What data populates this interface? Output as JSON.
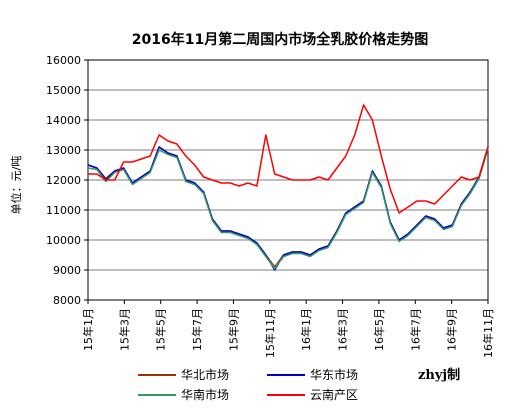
{
  "chart_data": {
    "type": "line",
    "title": "2016年11月第二周国内市场全乳胶价格走势图",
    "xlabel": "",
    "ylabel": "单位：元/吨",
    "ylim": [
      8000,
      16000
    ],
    "yticks": [
      "8000",
      "9000",
      "10000",
      "11000",
      "12000",
      "13000",
      "14000",
      "15000",
      "16000"
    ],
    "xticks": [
      "15年1月",
      "15年3月",
      "15年5月",
      "15年7月",
      "15年9月",
      "15年11月",
      "16年1月",
      "16年3月",
      "16年5月",
      "16年7月",
      "16年9月",
      "16年11月"
    ],
    "x_points": [
      "15-01",
      "15-01b",
      "15-02",
      "15-02b",
      "15-03",
      "15-03b",
      "15-04",
      "15-04b",
      "15-05",
      "15-05b",
      "15-06",
      "15-06b",
      "15-07",
      "15-07b",
      "15-08",
      "15-08b",
      "15-09",
      "15-09b",
      "15-10",
      "15-10b",
      "15-11",
      "15-11b",
      "15-12",
      "15-12b",
      "16-01",
      "16-01b",
      "16-02",
      "16-02b",
      "16-03",
      "16-03b",
      "16-04",
      "16-04b",
      "16-05",
      "16-05b",
      "16-06",
      "16-06b",
      "16-07",
      "16-07b",
      "16-08",
      "16-08b",
      "16-09",
      "16-09b",
      "16-10",
      "16-10b",
      "16-11",
      "16-11b"
    ],
    "grid": true,
    "legend": "bottom",
    "series": [
      {
        "name": "华北市场",
        "color": "#993300",
        "values": [
          12500,
          12400,
          12050,
          12300,
          12400,
          11900,
          12100,
          12300,
          13100,
          12900,
          12800,
          12000,
          11900,
          11600,
          10700,
          10300,
          10300,
          10200,
          10100,
          9900,
          9500,
          9100,
          9500,
          9600,
          9600,
          9500,
          9700,
          9800,
          10300,
          10900,
          11100,
          11300,
          12300,
          11800,
          10600,
          10000,
          10200,
          10500,
          10800,
          10700,
          10400,
          10500,
          11200,
          11600,
          12100,
          13100
        ]
      },
      {
        "name": "华东市场",
        "color": "#0000cc",
        "values": [
          12500,
          12400,
          12000,
          12300,
          12400,
          11900,
          12100,
          12300,
          13100,
          12900,
          12800,
          12000,
          11900,
          11600,
          10700,
          10300,
          10300,
          10200,
          10100,
          9900,
          9500,
          9000,
          9500,
          9600,
          9600,
          9500,
          9700,
          9800,
          10300,
          10900,
          11100,
          11300,
          12300,
          11800,
          10600,
          10000,
          10200,
          10500,
          10800,
          10700,
          10400,
          10500,
          11200,
          11600,
          12100,
          13100
        ]
      },
      {
        "name": "华南市场",
        "color": "#339966",
        "values": [
          12400,
          12350,
          11950,
          12250,
          12350,
          11850,
          12050,
          12250,
          13000,
          12850,
          12750,
          11950,
          11850,
          11550,
          10650,
          10250,
          10250,
          10150,
          10050,
          9850,
          9450,
          9050,
          9450,
          9550,
          9550,
          9450,
          9650,
          9750,
          10250,
          10850,
          11050,
          11250,
          12250,
          11750,
          10550,
          9950,
          10150,
          10450,
          10750,
          10650,
          10350,
          10450,
          11150,
          11550,
          12050,
          13050
        ]
      },
      {
        "name": "云南产区",
        "color": "#ff0000",
        "values": [
          12200,
          12200,
          12000,
          12000,
          12600,
          12600,
          12700,
          12800,
          13500,
          13300,
          13200,
          12800,
          12500,
          12100,
          12000,
          11900,
          11900,
          11800,
          11900,
          11800,
          13500,
          12200,
          12100,
          12000,
          12000,
          12000,
          12100,
          12000,
          12400,
          12800,
          13500,
          14500,
          14000,
          12800,
          11700,
          10900,
          11100,
          11300,
          11300,
          11200,
          11500,
          11800,
          12100,
          12000,
          12100,
          13100
        ]
      }
    ]
  },
  "credit": "zhyj制"
}
